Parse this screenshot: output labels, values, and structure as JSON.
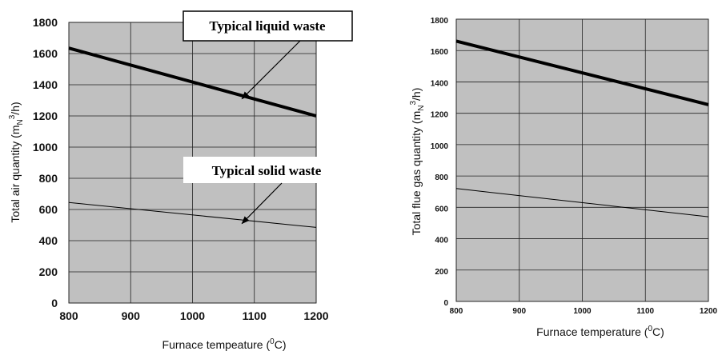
{
  "chart_data": [
    {
      "type": "line",
      "title": "",
      "xlabel": "Furnace tempeature (",
      "xlabel_sup": "0",
      "xlabel_end": "C)",
      "ylabel": "Total air quantity (m",
      "ylabel_sub": "N",
      "ylabel_sup": "3",
      "ylabel_end": "/h)",
      "xlim": [
        800,
        1200
      ],
      "ylim": [
        0,
        1800
      ],
      "xticks": [
        "800",
        "900",
        "1000",
        "1100",
        "1200"
      ],
      "yticks": [
        "0",
        "200",
        "400",
        "600",
        "800",
        "1000",
        "1200",
        "1400",
        "1600",
        "1800"
      ],
      "grid": true,
      "background": "#c0c0c0",
      "series": [
        {
          "name": "Typical liquid waste",
          "x": [
            800,
            1200
          ],
          "y": [
            1635,
            1200
          ]
        },
        {
          "name": "Typical solid waste",
          "x": [
            800,
            1200
          ],
          "y": [
            645,
            485
          ]
        }
      ],
      "annotations": [
        {
          "text": "Typical liquid waste",
          "arrow_to": [
            1080,
            1310
          ]
        },
        {
          "text": "Typical solid waste",
          "arrow_to": [
            1080,
            510
          ]
        }
      ]
    },
    {
      "type": "line",
      "title": "",
      "xlabel": "Furnace temperature  (",
      "xlabel_sup": "0",
      "xlabel_end": "C)",
      "ylabel": "Total flue gas quantity (m",
      "ylabel_sub": "N",
      "ylabel_sup": "3",
      "ylabel_end": "/h)",
      "xlim": [
        800,
        1200
      ],
      "ylim": [
        0,
        1800
      ],
      "xticks": [
        "800",
        "900",
        "1000",
        "1100",
        "1200"
      ],
      "yticks": [
        "0",
        "200",
        "400",
        "600",
        "800",
        "1000",
        "1200",
        "1400",
        "1600",
        "1800"
      ],
      "grid": true,
      "background": "#c0c0c0",
      "series": [
        {
          "x": [
            800,
            1200
          ],
          "y": [
            1660,
            1255
          ]
        },
        {
          "x": [
            800,
            1200
          ],
          "y": [
            720,
            540
          ]
        }
      ]
    }
  ]
}
